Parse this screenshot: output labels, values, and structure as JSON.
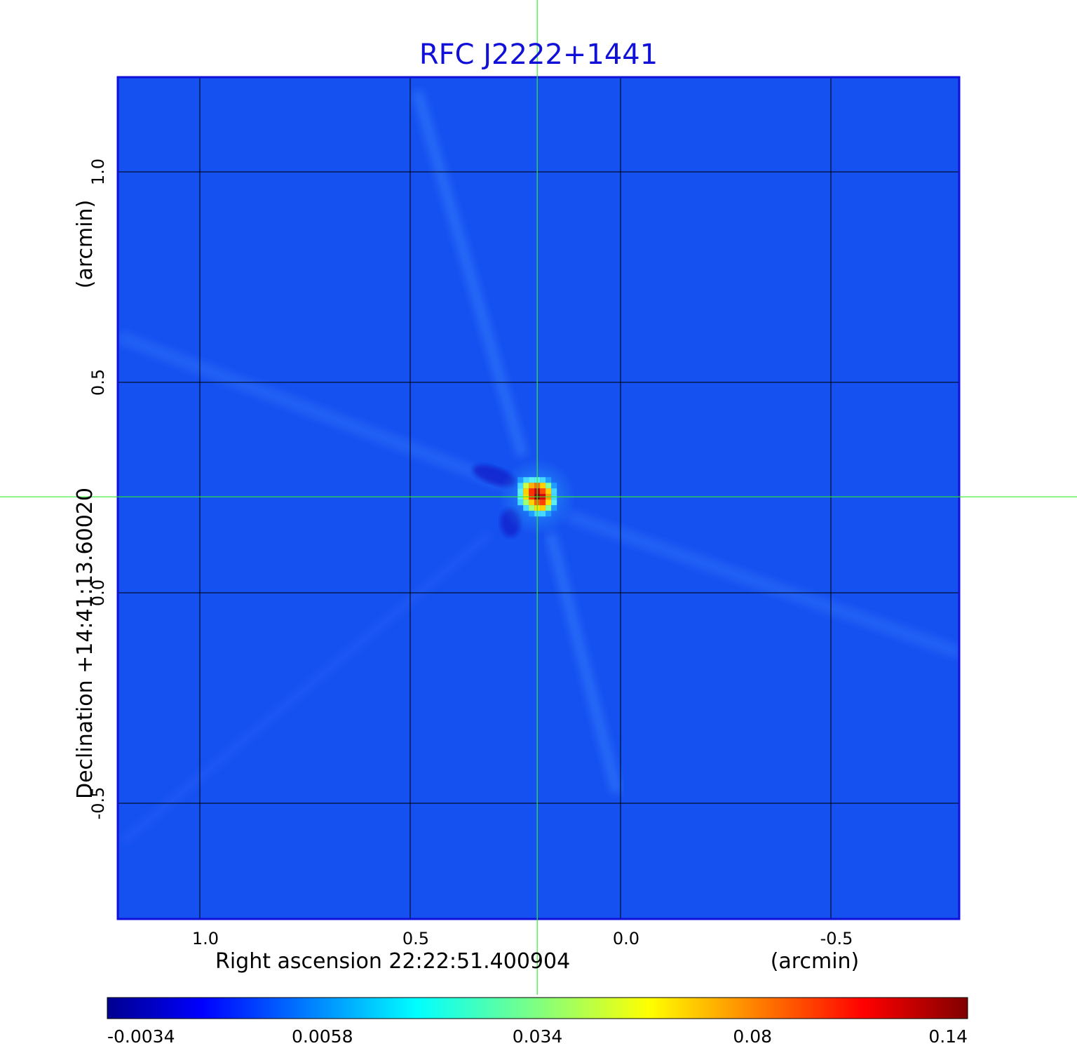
{
  "chart_data": {
    "type": "heatmap",
    "title": "RFC J2222+1441",
    "xlabel": "Right ascension  22:22:51.400904",
    "xunit": "(arcmin)",
    "ylabel": "Declination  +14:41:13.60020",
    "yunit": "(arcmin)",
    "xlim": [
      1.195,
      -0.805
    ],
    "ylim": [
      -0.775,
      1.225
    ],
    "x_ticks": [
      {
        "value": 1.0,
        "label": "1.0"
      },
      {
        "value": 0.5,
        "label": "0.5"
      },
      {
        "value": 0.0,
        "label": "0.0"
      },
      {
        "value": -0.5,
        "label": "-0.5"
      }
    ],
    "y_ticks": [
      {
        "value": 1.0,
        "label": "1.0"
      },
      {
        "value": 0.5,
        "label": "0.5"
      },
      {
        "value": 0.0,
        "label": "0.0"
      },
      {
        "value": -0.5,
        "label": "-0.5"
      }
    ],
    "grid": true,
    "crosshair": {
      "x": 0.198,
      "y": 0.228,
      "color": "#33ee33"
    },
    "peak": {
      "x": 0.198,
      "y": 0.228
    },
    "colorbar": {
      "orientation": "horizontal",
      "position": "bottom",
      "colormap": "jet",
      "tick_labels": [
        "-0.0034",
        "0.0058",
        "0.034",
        "0.08",
        "0.14"
      ]
    }
  }
}
